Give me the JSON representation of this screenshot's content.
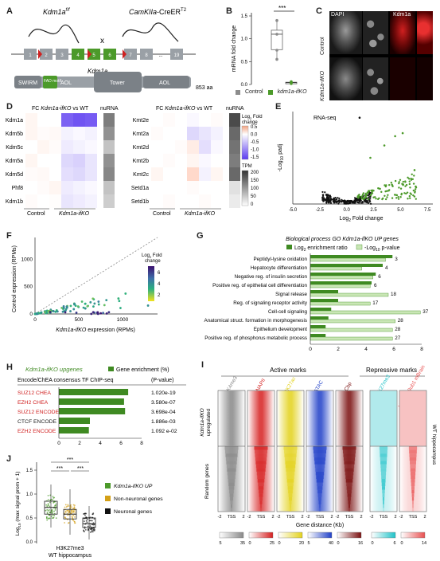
{
  "panels": {
    "A": {
      "letter": "A",
      "flox_label": "Kdm1a",
      "flox_sup": "f/f",
      "cre_label": "CamKIIa",
      "cre_suffix": "-CreER",
      "cre_sup": "T2",
      "cross": "x",
      "gene_label": "Kdm1a",
      "exons": [
        "1",
        "2",
        "3",
        "4",
        "5",
        "6",
        "7",
        "8",
        "19"
      ],
      "domains": [
        "SWIRM",
        "FAD motif",
        "AOL",
        "Tower",
        "AOL"
      ],
      "length": "853 aa"
    },
    "B": {
      "letter": "B",
      "ylabel": "mRNA fold change",
      "yticks": [
        "1.5",
        "1.0",
        "0.5",
        "0.0"
      ],
      "significance": "***",
      "legend": [
        {
          "label": "Control",
          "color": "#8c8c8c"
        },
        {
          "label": "kdm1a-ifKO",
          "color": "#4c9a2a"
        }
      ]
    },
    "C": {
      "letter": "C",
      "channels": [
        "DAPI",
        "Kdm1a"
      ],
      "rows": [
        "Control",
        "Kdm1a-ifKO"
      ]
    },
    "D": {
      "letter": "D",
      "title_left": "FC Kdm1a-ifKO vs WT",
      "title_right": "FC Kdm1a-ifKO vs WT",
      "nurna": "nuRNA",
      "genes_left": [
        "Kdm1a",
        "Kdm5b",
        "Kdm5c",
        "Kdm5a",
        "Kdm5d",
        "Phf8",
        "Kdm1b"
      ],
      "genes_right": [
        "Kmt2e",
        "Kmt2a",
        "Kmt2d",
        "Kmt2b",
        "Kmt2c",
        "Setd1a",
        "Setd1b"
      ],
      "xlabels": [
        "Control",
        "Kdm1a-ifKO"
      ],
      "fc_legend_title": "Log2 Fold change",
      "fc_ticks": [
        "0.5",
        "0.0",
        "-0.5",
        "-1.0",
        "-1.5"
      ],
      "tpm_title": "TPM",
      "tpm_ticks": [
        "200",
        "150",
        "100",
        "50",
        "0"
      ]
    },
    "E": {
      "letter": "E",
      "title": "RNA-seq",
      "ylabel": "-Log10 padj",
      "xlabel": "Log2 Fold change",
      "xticks": [
        "-5.0",
        "-2.5",
        "0.0",
        "2.5",
        "5.0",
        "7.5"
      ]
    },
    "F": {
      "letter": "F",
      "ylabel": "Control expression (RPMs)",
      "xlabel": "Kdm1a-ifKO expression (RPMs)",
      "xticks": [
        "0",
        "500",
        "1000"
      ],
      "yticks": [
        "1000",
        "500",
        "0"
      ],
      "legend_title": "Log2 Fold change",
      "legend_ticks": [
        "6",
        "4",
        "2"
      ]
    },
    "G": {
      "letter": "G",
      "title": "Biological process GO Kdm1a-ifKO UP genes",
      "legend": [
        "Log2 enrichment ratio",
        "-Log10 p-value"
      ],
      "xticks": [
        "0",
        "2",
        "4",
        "6",
        "8"
      ]
    },
    "H": {
      "letter": "H",
      "title": "Kdm1a-ifKO upgenes",
      "legend": "Gene enrichment (%)",
      "subtitle": "Encode/ChEA consensus TF ChIP-seq",
      "pcol": "(P-value)",
      "xticks": [
        "0",
        "2",
        "4",
        "6",
        "8"
      ]
    },
    "I": {
      "letter": "I",
      "active": "Active marks",
      "repressive": "Repressive marks",
      "cols": [
        {
          "name": "H3K4me3",
          "color": "#888888"
        },
        {
          "name": "RNAPII",
          "color": "#d62020"
        },
        {
          "name": "H3K27ac",
          "color": "#e3d21c"
        },
        {
          "name": "ATAC",
          "color": "#2040c8"
        },
        {
          "name": "Cbp",
          "color": "#7a1010"
        },
        {
          "name": "H3K27me3",
          "color": "#1fc2c8"
        },
        {
          "name": "H2AK119ub1 mBrain",
          "color": "#e85050"
        }
      ],
      "row_top": "Kdm1a-ifKO upregulated",
      "row_bottom": "Random genes",
      "right_label": "WT hippocampus",
      "axis": [
        "-2",
        "TSS",
        "2"
      ],
      "xlabel": "Gene distance (Kb)",
      "scales": [
        [
          "5",
          "35"
        ],
        [
          "0",
          "25"
        ],
        [
          "0",
          "20"
        ],
        [
          "5",
          "40"
        ],
        [
          "0",
          "16"
        ],
        [
          "0",
          "6"
        ],
        [
          "0",
          "14"
        ]
      ]
    },
    "J": {
      "letter": "J",
      "ylabel": "Log10 (max signal prom + 1)",
      "yticks": [
        "1.5",
        "1.0",
        "0.5",
        "0.0"
      ],
      "sig": [
        "***",
        "***",
        "***"
      ],
      "xlabel1": "H3K27me3",
      "xlabel2": "WT hippocampus",
      "legend": [
        {
          "label": "Kdm1a-ifKO UP",
          "color": "#4c9a2a"
        },
        {
          "label": "Non-neuronal genes",
          "color": "#d4a017"
        },
        {
          "label": "Neuronal genes",
          "color": "#111111"
        }
      ]
    }
  },
  "chart_data": [
    {
      "id": "B",
      "type": "box",
      "categories": [
        "Control",
        "kdm1a-ifKO"
      ],
      "series": [
        {
          "name": "Control",
          "values": [
            1.4,
            1.1,
            0.75,
            0.55
          ]
        },
        {
          "name": "kdm1a-ifKO",
          "values": [
            0.06,
            0.04,
            0.02
          ]
        }
      ],
      "ylabel": "mRNA fold change",
      "ylim": [
        0,
        1.5
      ]
    },
    {
      "id": "G",
      "type": "bar",
      "categories": [
        "Peptidyl-lysine oxidation",
        "Hepatocyte differentiation",
        "Negative reg. of insulin secretion",
        "Positive reg. of epithelial cell differentiation",
        "Signal release",
        "Reg. of signaling receptor activity",
        "Cell-cell signaling",
        "Anatomical struct. formation in morphogenesis",
        "Epithelium development",
        "Positive reg. of phosphorus metabolic process"
      ],
      "series": [
        {
          "name": "Log2 enrichment ratio",
          "values": [
            5.9,
            5.2,
            4.7,
            4.4,
            2.0,
            2.0,
            1.5,
            1.3,
            1.1,
            1.1
          ]
        },
        {
          "name": "-Log10 p-value",
          "values": [
            5.4,
            3.7,
            4.5,
            4.3,
            5.6,
            4.3,
            7.9,
            6.1,
            5.9,
            5.9
          ]
        }
      ],
      "labels": [
        "3",
        "4",
        "6",
        "6",
        "18",
        "17",
        "37",
        "28",
        "28",
        "27"
      ],
      "xlim": [
        0,
        8
      ]
    },
    {
      "id": "H",
      "type": "bar",
      "categories": [
        "SUZ12 CHEA",
        "EZH2 CHEA",
        "SUZ12 ENCODE",
        "CTCF ENCODE",
        "EZH2 ENCODE"
      ],
      "values": [
        6.7,
        6.3,
        6.4,
        3.0,
        2.9
      ],
      "pvalues": [
        "1.020e-19",
        "3.580e-07",
        "3.698e-04",
        "1.886e-03",
        "1.092 e-02"
      ],
      "name_colors": [
        "#d02020",
        "#d02020",
        "#d02020",
        "#222222",
        "#d02020"
      ],
      "xlim": [
        0,
        8
      ]
    },
    {
      "id": "J",
      "type": "box",
      "categories": [
        "Kdm1a-ifKO UP",
        "Non-neuronal genes",
        "Neuronal genes"
      ],
      "series": [
        {
          "name": "Kdm1a-ifKO UP",
          "values": [
            0.72,
            0.85,
            0.55,
            1.2,
            0.3
          ],
          "median": 0.72,
          "q1": 0.58,
          "q3": 0.85
        },
        {
          "name": "Non-neuronal genes",
          "values": [
            0.58,
            0.7,
            0.45,
            1.1,
            0.15
          ],
          "median": 0.58,
          "q1": 0.48,
          "q3": 0.68
        },
        {
          "name": "Neuronal genes",
          "values": [
            0.38,
            0.5,
            0.3,
            0.75,
            0.05
          ],
          "median": 0.38,
          "q1": 0.3,
          "q3": 0.5
        }
      ],
      "ylim": [
        0,
        1.6
      ]
    }
  ]
}
